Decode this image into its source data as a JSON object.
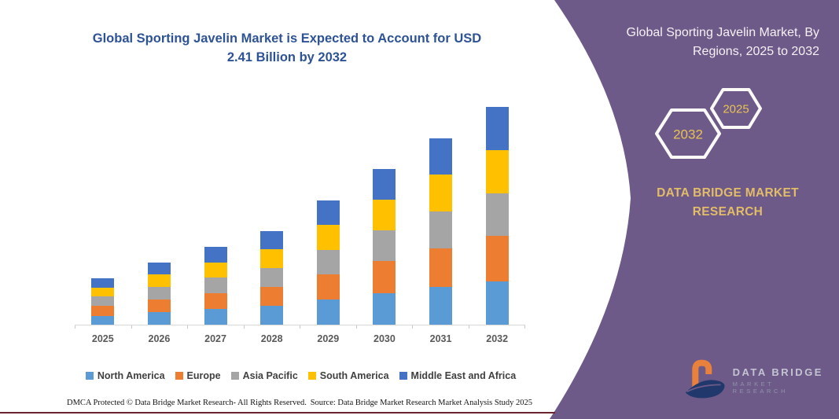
{
  "left_panel": {
    "title": "Global Sporting Javelin Market is Expected to Account for USD 2.41 Billion by 2032",
    "footer_left": "DMCA Protected © Data Bridge Market Research-  All Rights Reserved.",
    "footer_right": "Source: Data Bridge Market Research  Market Analysis Study 2025"
  },
  "right_panel": {
    "title": "Global Sporting Javelin Market, By Regions, 2025 to 2032",
    "hexagon_back_label": "2025",
    "hexagon_front_label": "2032",
    "brand_line1": "DATA BRIDGE MARKET",
    "brand_line2": "RESEARCH",
    "logo_line1": "DATA BRIDGE",
    "logo_line2": "MARKET RESEARCH",
    "panel_color": "#6D5A88",
    "gold_color": "#E2BC68"
  },
  "chart_data": {
    "type": "bar",
    "stacked": true,
    "unit": "USD Billion",
    "title": "Global Sporting Javelin Market is Expected to Account for USD 2.41 Billion by 2032",
    "xlabel": "",
    "ylabel": "",
    "ylim": [
      0,
      2.6
    ],
    "grid": false,
    "legend_position": "bottom",
    "axis_visible": false,
    "categories": [
      "2025",
      "2026",
      "2027",
      "2028",
      "2029",
      "2030",
      "2031",
      "2032"
    ],
    "series": [
      {
        "name": "North America",
        "color": "#5B9BD5",
        "values": [
          0.1,
          0.14,
          0.17,
          0.21,
          0.28,
          0.35,
          0.42,
          0.48
        ]
      },
      {
        "name": "Europe",
        "color": "#ED7D31",
        "values": [
          0.11,
          0.14,
          0.18,
          0.21,
          0.28,
          0.35,
          0.42,
          0.5
        ]
      },
      {
        "name": "Asia Pacific",
        "color": "#A5A5A5",
        "values": [
          0.1,
          0.14,
          0.17,
          0.21,
          0.27,
          0.34,
          0.41,
          0.47
        ]
      },
      {
        "name": "South America",
        "color": "#FFC000",
        "values": [
          0.1,
          0.14,
          0.17,
          0.21,
          0.27,
          0.34,
          0.41,
          0.48
        ]
      },
      {
        "name": "Middle East and Africa",
        "color": "#4472C4",
        "values": [
          0.1,
          0.13,
          0.17,
          0.2,
          0.27,
          0.34,
          0.4,
          0.48
        ]
      }
    ],
    "totals": [
      0.51,
      0.69,
      0.86,
      1.04,
      1.37,
      1.72,
      2.06,
      2.41
    ]
  }
}
